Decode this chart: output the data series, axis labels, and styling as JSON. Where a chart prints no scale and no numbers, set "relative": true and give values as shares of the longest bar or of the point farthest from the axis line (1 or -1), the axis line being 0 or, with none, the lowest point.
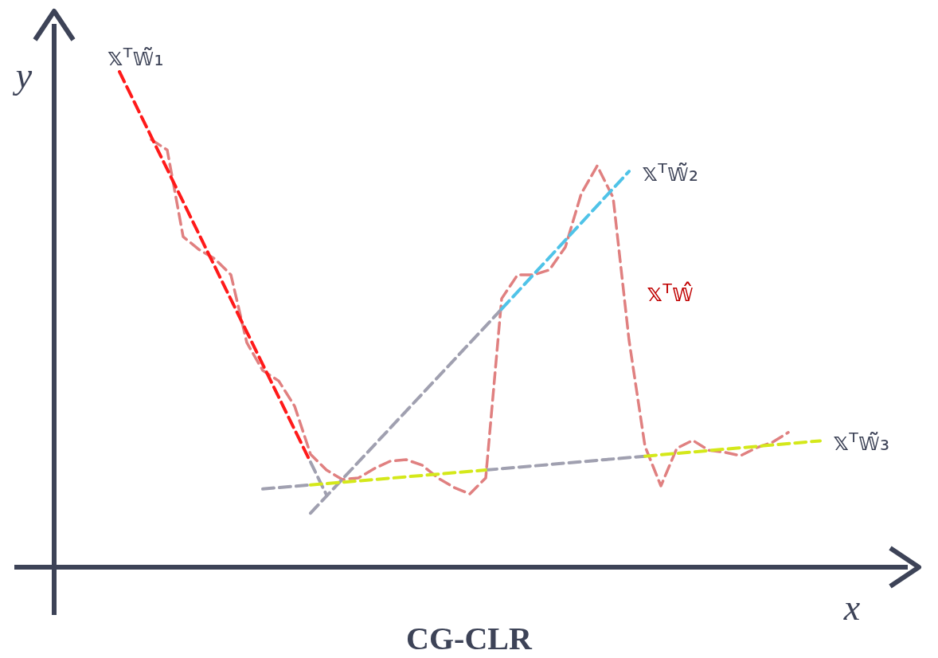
{
  "chart_data": {
    "type": "line",
    "title": "CG-CLR",
    "xlabel": "x",
    "ylabel": "y",
    "relative": true,
    "line_style": "dashed",
    "marker": "none",
    "categories": [
      null,
      null,
      null,
      null,
      null,
      null,
      null,
      null,
      null,
      null,
      null,
      null,
      null,
      null,
      null,
      null,
      null,
      null,
      null,
      null,
      null,
      null,
      null,
      null,
      null,
      null,
      null,
      null,
      null,
      null,
      null,
      null,
      null,
      null,
      null,
      null,
      null,
      null,
      null,
      null,
      null,
      null,
      null,
      null,
      null
    ],
    "series": [
      {
        "name": "𝕩ᵀ𝕨̂",
        "color": "#e08080",
        "values": [
          null,
          null,
          0.863,
          0.842,
          0.667,
          0.641,
          0.622,
          0.59,
          0.453,
          0.397,
          0.376,
          0.325,
          0.228,
          0.196,
          0.177,
          0.18,
          0.199,
          0.214,
          0.217,
          0.206,
          0.18,
          0.161,
          0.148,
          0.18,
          0.542,
          0.59,
          0.59,
          0.6,
          0.646,
          0.754,
          0.81,
          0.746,
          0.458,
          0.244,
          0.164,
          0.24,
          0.256,
          0.236,
          0.232,
          0.225,
          0.241,
          0.252,
          0.272,
          null,
          null
        ]
      },
      {
        "color": "#a0a0b0",
        "values": [
          null,
          null,
          null,
          null,
          null,
          null,
          null,
          null,
          null,
          null,
          null,
          null,
          0.212,
          0.146,
          null,
          null,
          null,
          null,
          null,
          null,
          null,
          null,
          null,
          null,
          null,
          null,
          null,
          null,
          null,
          null,
          null,
          null,
          null,
          null,
          null,
          null,
          null,
          null,
          null,
          null,
          null,
          null,
          null,
          null,
          null
        ]
      },
      {
        "color": "#a0a0b0",
        "values": [
          null,
          null,
          null,
          null,
          null,
          null,
          null,
          null,
          null,
          null,
          null,
          null,
          0.109,
          null,
          null,
          null,
          null,
          null,
          null,
          null,
          null,
          null,
          null,
          null,
          0.521,
          null,
          null,
          null,
          null,
          null,
          null,
          null,
          null,
          null,
          null,
          null,
          null,
          null,
          null,
          null,
          null,
          null,
          null,
          null,
          null
        ]
      },
      {
        "color": "#a0a0b0",
        "values": [
          null,
          null,
          null,
          null,
          null,
          null,
          null,
          null,
          null,
          0.158,
          null,
          null,
          0.166,
          null,
          null,
          null,
          null,
          null,
          null,
          null,
          null,
          null,
          null,
          null,
          null,
          null,
          null,
          null,
          null,
          null,
          null,
          null,
          null,
          null,
          null,
          null,
          null,
          null,
          null,
          null,
          null,
          null,
          null,
          null,
          null
        ]
      },
      {
        "color": "#a0a0b0",
        "values": [
          null,
          null,
          null,
          null,
          null,
          null,
          null,
          null,
          null,
          null,
          null,
          null,
          null,
          null,
          null,
          null,
          null,
          null,
          null,
          null,
          null,
          null,
          null,
          0.196,
          null,
          null,
          null,
          null,
          null,
          null,
          null,
          null,
          null,
          0.224,
          null,
          null,
          null,
          null,
          null,
          null,
          null,
          null,
          null,
          null,
          null
        ]
      },
      {
        "name": "𝕩ᵀ𝕨̃₁",
        "color": "#ff1a1a",
        "values": [
          1,
          null,
          null,
          null,
          null,
          null,
          null,
          null,
          null,
          null,
          null,
          null,
          0.212,
          null,
          null,
          null,
          null,
          null,
          null,
          null,
          null,
          null,
          null,
          null,
          null,
          null,
          null,
          null,
          null,
          null,
          null,
          null,
          null,
          null,
          null,
          null,
          null,
          null,
          null,
          null,
          null,
          null,
          null,
          null,
          null
        ]
      },
      {
        "name": "𝕩ᵀ𝕨̃₂",
        "color": "#4fc3e8",
        "values": [
          null,
          null,
          null,
          null,
          null,
          null,
          null,
          null,
          null,
          null,
          null,
          null,
          null,
          null,
          null,
          null,
          null,
          null,
          null,
          null,
          null,
          null,
          null,
          null,
          0.521,
          null,
          null,
          null,
          null,
          null,
          null,
          null,
          0.799,
          null,
          null,
          null,
          null,
          null,
          null,
          null,
          null,
          null,
          null,
          null,
          null
        ]
      },
      {
        "color": "#d4e81a",
        "values": [
          null,
          null,
          null,
          null,
          null,
          null,
          null,
          null,
          null,
          null,
          null,
          null,
          0.166,
          null,
          null,
          null,
          null,
          null,
          null,
          null,
          null,
          null,
          null,
          0.196,
          null,
          null,
          null,
          null,
          null,
          null,
          null,
          null,
          null,
          null,
          null,
          null,
          null,
          null,
          null,
          null,
          null,
          null,
          null,
          null,
          null
        ]
      },
      {
        "name": "𝕩ᵀ𝕨̃₃",
        "color": "#d4e81a",
        "values": [
          null,
          null,
          null,
          null,
          null,
          null,
          null,
          null,
          null,
          null,
          null,
          null,
          null,
          null,
          null,
          null,
          null,
          null,
          null,
          null,
          null,
          null,
          null,
          null,
          null,
          null,
          null,
          null,
          null,
          null,
          null,
          null,
          null,
          0.224,
          null,
          null,
          null,
          null,
          null,
          null,
          null,
          null,
          null,
          null,
          0.255
        ]
      }
    ]
  }
}
